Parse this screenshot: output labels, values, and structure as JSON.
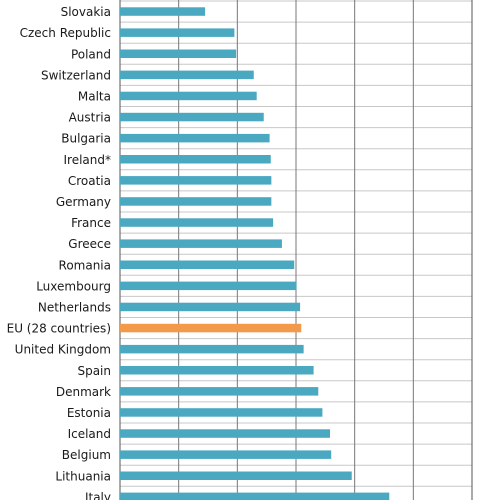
{
  "chart_data": {
    "type": "bar",
    "orientation": "horizontal",
    "categories": [
      "Slovakia",
      "Czech Republic",
      "Poland",
      "Switzerland",
      "Malta",
      "Austria",
      "Bulgaria",
      "Ireland*",
      "Croatia",
      "Germany",
      "France",
      "Greece",
      "Romania",
      "Luxembourg",
      "Netherlands",
      "EU (28 countries)",
      "United Kingdom",
      "Spain",
      "Denmark",
      "Estonia",
      "Iceland",
      "Belgium",
      "Lithuania",
      "Italy"
    ],
    "values": [
      14.5,
      19.5,
      19.8,
      22.8,
      23.3,
      24.5,
      25.5,
      25.7,
      25.8,
      25.8,
      26.1,
      27.6,
      29.7,
      30.1,
      30.7,
      30.9,
      31.3,
      33.0,
      33.8,
      34.5,
      35.8,
      36.0,
      39.5,
      45.9
    ],
    "highlight_category": "EU (28 countries)",
    "xlim": [
      0,
      60
    ],
    "grid_step": 10,
    "grid": true,
    "colors": {
      "bar": "#4aa8c0",
      "highlight": "#f29a4a",
      "background": "#ffffff"
    }
  }
}
